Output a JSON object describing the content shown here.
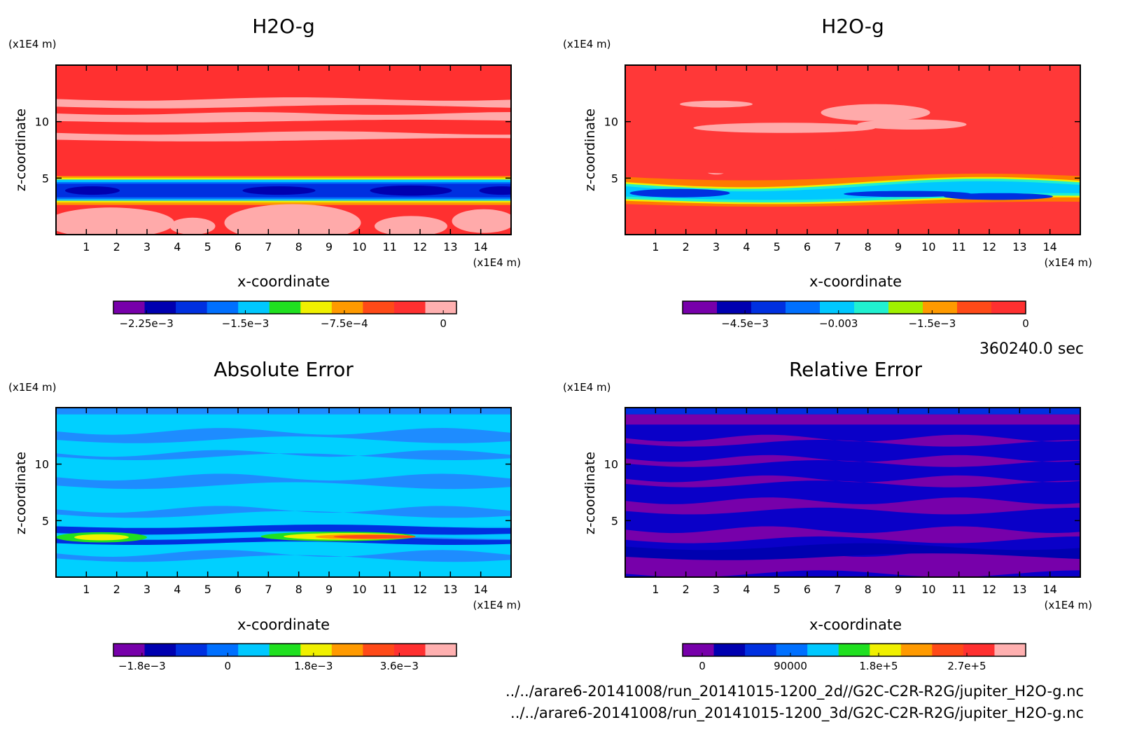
{
  "chart_data": [
    {
      "type": "heatmap",
      "title": "H2O-g",
      "xlabel": "x-coordinate",
      "ylabel": "z-coordinate",
      "x_unit": "(x1E4 m)",
      "y_unit": "(x1E4 m)",
      "xlim": [
        0,
        15
      ],
      "ylim": [
        0,
        15
      ],
      "x_ticks": [
        "1",
        "2",
        "3",
        "4",
        "5",
        "6",
        "7",
        "8",
        "9",
        "10",
        "11",
        "12",
        "13",
        "14"
      ],
      "y_ticks": [
        "5",
        "10"
      ],
      "colorbar": {
        "colors": [
          "#7700aa",
          "#0000b0",
          "#0030e0",
          "#0070ff",
          "#00c8ff",
          "#20e020",
          "#f0f000",
          "#ff9a00",
          "#ff4a18",
          "#ff3030",
          "#ffb0b0"
        ],
        "tick_labels": [
          "-2.25e-3",
          "-1.5e-3",
          "-7.5e-4",
          "0"
        ],
        "range": [
          -0.0025,
          0.0001
        ]
      },
      "background_color": "#ff3030",
      "band_colors": [
        "#ffaaaa",
        "#ff9a00",
        "#f0f000",
        "#00c8ff",
        "#0070ff",
        "#0030e0",
        "#0000b0",
        "#7700aa"
      ]
    },
    {
      "type": "heatmap",
      "title": "H2O-g",
      "xlabel": "x-coordinate",
      "ylabel": "z-coordinate",
      "x_unit": "(x1E4 m)",
      "y_unit": "(x1E4 m)",
      "xlim": [
        0,
        15
      ],
      "ylim": [
        0,
        15
      ],
      "x_ticks": [
        "1",
        "2",
        "3",
        "4",
        "5",
        "6",
        "7",
        "8",
        "9",
        "10",
        "11",
        "12",
        "13",
        "14"
      ],
      "y_ticks": [
        "5",
        "10"
      ],
      "colorbar": {
        "colors": [
          "#7700aa",
          "#0000b0",
          "#0030e0",
          "#0070ff",
          "#00c8ff",
          "#20f0d0",
          "#a0f000",
          "#ff9a00",
          "#ff4a18",
          "#ff3030"
        ],
        "tick_labels": [
          "-4.5e-3",
          "-0.003",
          "-1.5e-3",
          "0"
        ],
        "range": [
          -0.0055,
          0.0
        ]
      },
      "background_color": "#ff3838"
    },
    {
      "type": "heatmap",
      "title": "Absolute Error",
      "xlabel": "x-coordinate",
      "ylabel": "z-coordinate",
      "x_unit": "(x1E4 m)",
      "y_unit": "(x1E4 m)",
      "xlim": [
        0,
        15
      ],
      "ylim": [
        0,
        15
      ],
      "x_ticks": [
        "1",
        "2",
        "3",
        "4",
        "5",
        "6",
        "7",
        "8",
        "9",
        "10",
        "11",
        "12",
        "13",
        "14"
      ],
      "y_ticks": [
        "5",
        "10"
      ],
      "colorbar": {
        "colors": [
          "#7700aa",
          "#0000b0",
          "#0030e0",
          "#0070ff",
          "#00c8ff",
          "#20e020",
          "#f0f000",
          "#ff9a00",
          "#ff4a18",
          "#ff3030",
          "#ffb0b0"
        ],
        "tick_labels": [
          "-1.8e-3",
          "0",
          "1.8e-3",
          "3.6e-3"
        ],
        "range": [
          -0.0024,
          0.0048
        ]
      },
      "background_color": "#00d0ff"
    },
    {
      "type": "heatmap",
      "title": "Relative Error",
      "xlabel": "x-coordinate",
      "ylabel": "z-coordinate",
      "x_unit": "(x1E4 m)",
      "y_unit": "(x1E4 m)",
      "xlim": [
        0,
        15
      ],
      "ylim": [
        0,
        15
      ],
      "x_ticks": [
        "1",
        "2",
        "3",
        "4",
        "5",
        "6",
        "7",
        "8",
        "9",
        "10",
        "11",
        "12",
        "13",
        "14"
      ],
      "y_ticks": [
        "5",
        "10"
      ],
      "colorbar": {
        "colors": [
          "#7700aa",
          "#0000b0",
          "#0030e0",
          "#0070ff",
          "#00c8ff",
          "#20e020",
          "#f0f000",
          "#ff9a00",
          "#ff4a18",
          "#ff3030",
          "#ffb0b0"
        ],
        "tick_labels": [
          "0",
          "90000",
          "1.8e+5",
          "2.7e+5"
        ],
        "range": [
          -20000,
          330000
        ]
      },
      "background_color": "#0a00c8"
    }
  ],
  "time_label": "360240.0 sec",
  "source_files": [
    "../../arare6-20141008/run_20141015-1200_2d//G2C-C2R-R2G/jupiter_H2O-g.nc",
    "../../arare6-20141008/run_20141015-1200_3d/G2C-C2R-R2G/jupiter_H2O-g.nc"
  ]
}
